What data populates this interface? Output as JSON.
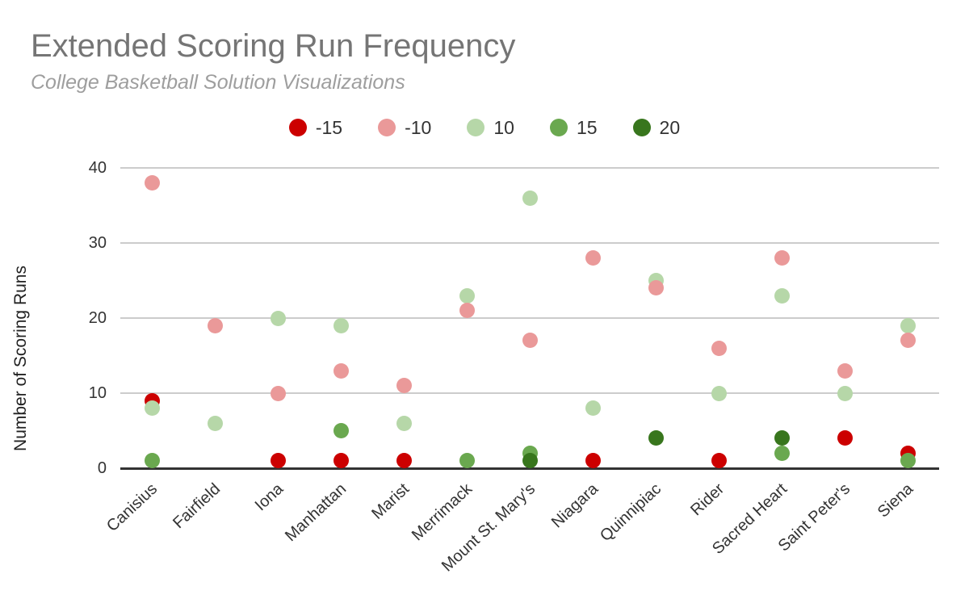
{
  "chart_data": {
    "type": "scatter",
    "title": "Extended Scoring Run Frequency",
    "subtitle": "College Basketball Solution Visualizations",
    "xlabel": "",
    "ylabel": "Number of Scoring Runs",
    "ylim": [
      0,
      40
    ],
    "yticks": [
      0,
      10,
      20,
      30,
      40
    ],
    "grid": true,
    "legend_position": "top-center",
    "categories": [
      "Canisius",
      "Fairfield",
      "Iona",
      "Manhattan",
      "Marist",
      "Merrimack",
      "Mount St. Mary's",
      "Niagara",
      "Quinnipiac",
      "Rider",
      "Sacred Heart",
      "Saint Peter's",
      "Siena"
    ],
    "series": [
      {
        "name": "-15",
        "color": "#cc0000",
        "values": [
          9,
          null,
          1,
          1,
          1,
          null,
          null,
          1,
          null,
          1,
          null,
          4,
          2
        ]
      },
      {
        "name": "-10",
        "color": "#ea9999",
        "values": [
          38,
          19,
          10,
          13,
          11,
          21,
          17,
          28,
          24,
          16,
          28,
          13,
          17
        ]
      },
      {
        "name": "10",
        "color": "#b6d7a8",
        "values": [
          8,
          6,
          20,
          19,
          6,
          23,
          36,
          8,
          25,
          10,
          23,
          10,
          19
        ]
      },
      {
        "name": "15",
        "color": "#6aa84f",
        "values": [
          1,
          null,
          null,
          5,
          null,
          1,
          2,
          null,
          null,
          null,
          2,
          null,
          1
        ]
      },
      {
        "name": "20",
        "color": "#38761d",
        "values": [
          null,
          null,
          null,
          null,
          null,
          null,
          1,
          null,
          4,
          null,
          4,
          null,
          null
        ]
      }
    ]
  },
  "colors": {
    "title": "#757575",
    "subtitle": "#9e9e9e",
    "axis_label": "#333333",
    "gridline": "#cccccc",
    "axis_line": "#333333",
    "background": "#ffffff"
  }
}
